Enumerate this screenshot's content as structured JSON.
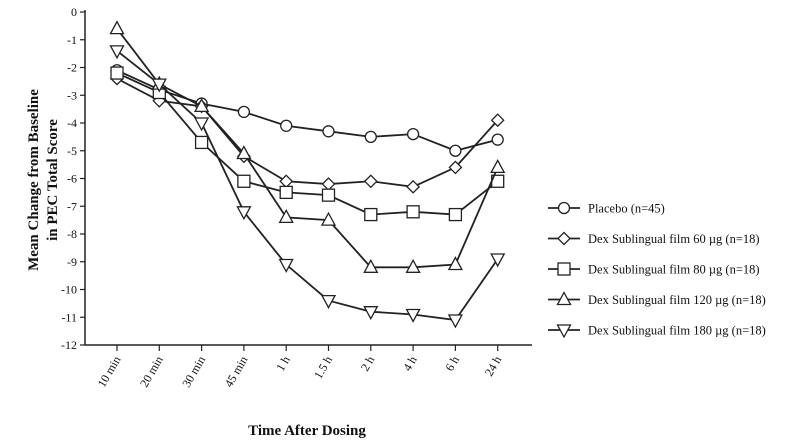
{
  "chart_data": {
    "type": "line",
    "title": "",
    "xlabel": "Time After Dosing",
    "ylabel": "Mean Change from Baseline in PEC Total Score",
    "ylabel_lines": [
      "Mean Change from Baseline",
      "in PEC Total Score"
    ],
    "categories": [
      "10 min",
      "20 min",
      "30 min",
      "45 min",
      "1 h",
      "1.5 h",
      "2 h",
      "4 h",
      "6 h",
      "24 h"
    ],
    "ylim": [
      -12,
      0
    ],
    "yticks": [
      0,
      -1,
      -2,
      -3,
      -4,
      -5,
      -6,
      -7,
      -8,
      -9,
      -10,
      -11,
      -12
    ],
    "grid": false,
    "legend_position": "right",
    "series": [
      {
        "name": "Placebo (n=45)",
        "marker": "circle",
        "values": [
          -2.1,
          -2.8,
          -3.3,
          -3.6,
          -4.1,
          -4.3,
          -4.5,
          -4.4,
          -5.0,
          -4.6
        ]
      },
      {
        "name": "Dex Sublingual film 60 µg (n=18)",
        "marker": "diamond",
        "values": [
          -2.4,
          -3.2,
          -3.4,
          -5.2,
          -6.1,
          -6.2,
          -6.1,
          -6.3,
          -5.6,
          -3.9
        ]
      },
      {
        "name": "Dex Sublingual film 80 µg (n=18)",
        "marker": "square",
        "values": [
          -2.2,
          -2.9,
          -4.7,
          -6.1,
          -6.5,
          -6.6,
          -7.3,
          -7.2,
          -7.3,
          -6.1
        ]
      },
      {
        "name": "Dex Sublingual film 120 µg (n=18)",
        "marker": "triangle-up",
        "values": [
          -0.6,
          -2.6,
          -3.4,
          -5.1,
          -7.4,
          -7.5,
          -9.2,
          -9.2,
          -9.1,
          -5.6
        ]
      },
      {
        "name": "Dex Sublingual film 180 µg (n=18)",
        "marker": "triangle-down",
        "values": [
          -1.4,
          -2.6,
          -4.0,
          -7.2,
          -9.1,
          -10.4,
          -10.8,
          -10.9,
          -11.1,
          -8.9
        ]
      }
    ]
  }
}
